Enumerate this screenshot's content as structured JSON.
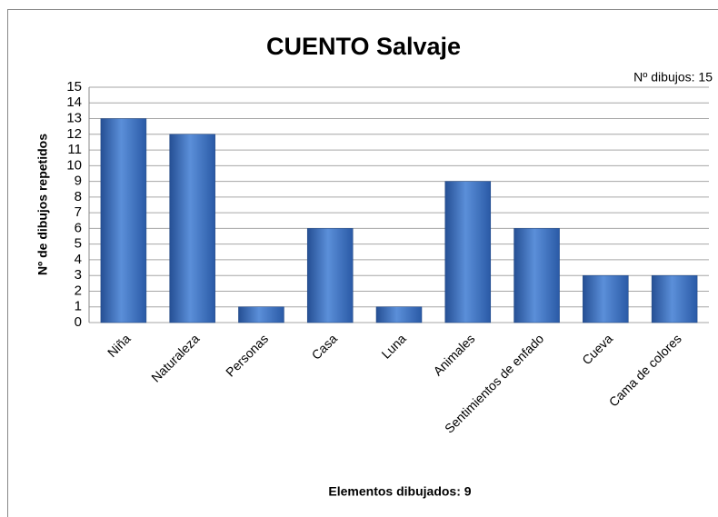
{
  "chart_data": {
    "type": "bar",
    "title": "CUENTO Salvaje",
    "annotation": "Nº dibujos: 15",
    "y_label": "Nº de dibujos repetidos",
    "x_label": "Elementos dibujados: 9",
    "categories": [
      "Niña",
      "Naturaleza",
      "Personas",
      "Casa",
      "Luna",
      "Animales",
      "Sentimientos de enfado",
      "Cueva",
      "Cama de colores"
    ],
    "values": [
      13,
      12,
      1,
      6,
      1,
      9,
      6,
      3,
      3
    ],
    "color": "#3a6fc0",
    "ylim": [
      0,
      15
    ],
    "yticks": [
      0,
      1,
      2,
      3,
      4,
      5,
      6,
      7,
      8,
      9,
      10,
      11,
      12,
      13,
      14,
      15
    ],
    "grid": true
  }
}
